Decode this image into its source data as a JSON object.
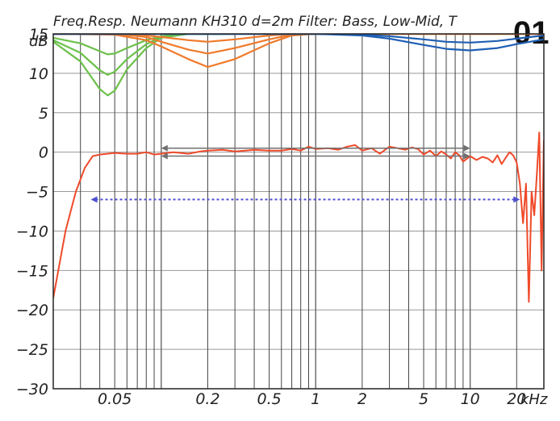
{
  "title": "Freq.Resp. Neumann KH310 d=2m Filter: Bass, Low-Mid, T",
  "badge": "01",
  "chart_data": {
    "type": "line",
    "title": "Freq.Resp. Neumann KH310 d=2m Filter: Bass, Low-Mid, T",
    "ylabel": "dB",
    "xlabel": "kHz",
    "xscale": "log",
    "xlim": [
      0.02,
      30
    ],
    "ylim": [
      -30,
      15
    ],
    "y_ticks": [
      15,
      10,
      5,
      0,
      -5,
      -10,
      -15,
      -20,
      -25,
      -30
    ],
    "y_tick_labels": [
      "15",
      "10",
      "5",
      "0",
      "−5",
      "−10",
      "−15",
      "−20",
      "−25",
      "−30"
    ],
    "x_ticks": [
      0.05,
      0.2,
      0.5,
      1,
      2,
      5,
      10,
      20
    ],
    "x_tick_labels": [
      "0.05",
      "0.2",
      "0.5",
      "1",
      "2",
      "5",
      "10",
      "20"
    ],
    "grid": true,
    "colors": {
      "bass_filter": "#6cc04a",
      "lowmid_filter": "#f07a2a",
      "treble_filter": "#1f5fb4",
      "response": "#ef4a2a",
      "range_marker": "#5050d0",
      "tolerance_arrows": "#707070"
    },
    "series": [
      {
        "group": "bass_filter",
        "x": [
          0.02,
          0.03,
          0.04,
          0.045,
          0.05,
          0.06,
          0.08,
          0.1,
          0.15,
          0.2,
          0.3
        ],
        "y": [
          14.5,
          13.8,
          12.8,
          12.4,
          12.5,
          13.2,
          14.2,
          14.7,
          15,
          15,
          15
        ]
      },
      {
        "group": "bass_filter",
        "x": [
          0.02,
          0.03,
          0.04,
          0.045,
          0.05,
          0.06,
          0.08,
          0.1,
          0.15,
          0.2,
          0.3
        ],
        "y": [
          14.2,
          12.6,
          10.4,
          9.8,
          10.2,
          11.8,
          13.7,
          14.6,
          15,
          15,
          15
        ]
      },
      {
        "group": "bass_filter",
        "x": [
          0.02,
          0.03,
          0.04,
          0.045,
          0.05,
          0.06,
          0.08,
          0.1,
          0.15,
          0.2,
          0.3
        ],
        "y": [
          14,
          11.5,
          8,
          7.2,
          7.8,
          10.5,
          13.2,
          14.5,
          15,
          15,
          15
        ]
      },
      {
        "group": "lowmid_filter",
        "x": [
          0.02,
          0.05,
          0.08,
          0.1,
          0.15,
          0.2,
          0.3,
          0.5,
          0.7,
          1,
          2,
          5,
          30
        ],
        "y": [
          15,
          15,
          14.8,
          14.6,
          14.2,
          14,
          14.3,
          14.8,
          15,
          15,
          15,
          15,
          15
        ]
      },
      {
        "group": "lowmid_filter",
        "x": [
          0.02,
          0.05,
          0.08,
          0.1,
          0.15,
          0.2,
          0.3,
          0.5,
          0.7,
          1,
          2,
          5,
          30
        ],
        "y": [
          15,
          15,
          14.6,
          14,
          13,
          12.5,
          13.2,
          14.3,
          14.9,
          15,
          15,
          15,
          15
        ]
      },
      {
        "group": "lowmid_filter",
        "x": [
          0.02,
          0.05,
          0.08,
          0.1,
          0.15,
          0.2,
          0.3,
          0.5,
          0.7,
          1,
          2,
          5,
          30
        ],
        "y": [
          15,
          14.9,
          14.2,
          13.4,
          11.8,
          10.8,
          11.8,
          13.8,
          14.8,
          15,
          15,
          15,
          15
        ]
      },
      {
        "group": "treble_filter",
        "x": [
          0.02,
          1,
          2,
          3,
          5,
          7,
          10,
          15,
          20,
          30
        ],
        "y": [
          15,
          15,
          15,
          15.1,
          15.3,
          15.6,
          16,
          16.5,
          16.9,
          17.5
        ]
      },
      {
        "group": "treble_filter",
        "x": [
          0.02,
          1,
          2,
          3,
          5,
          7,
          10,
          15,
          20,
          30
        ],
        "y": [
          15,
          15,
          14.9,
          14.7,
          14.3,
          14,
          13.9,
          14.1,
          14.4,
          14.8
        ]
      },
      {
        "group": "treble_filter",
        "x": [
          0.02,
          1,
          2,
          3,
          5,
          7,
          10,
          15,
          20,
          30
        ],
        "y": [
          15,
          15,
          14.8,
          14.4,
          13.6,
          13.1,
          12.9,
          13.2,
          13.7,
          14.3
        ]
      },
      {
        "group": "response",
        "x": [
          0.02,
          0.024,
          0.028,
          0.032,
          0.036,
          0.04,
          0.045,
          0.05,
          0.06,
          0.07,
          0.08,
          0.09,
          0.1,
          0.12,
          0.15,
          0.18,
          0.2,
          0.25,
          0.3,
          0.35,
          0.4,
          0.5,
          0.6,
          0.7,
          0.8,
          0.9,
          1,
          1.2,
          1.4,
          1.6,
          1.8,
          2,
          2.3,
          2.6,
          3,
          3.4,
          3.8,
          4.2,
          4.6,
          5,
          5.5,
          6,
          6.5,
          7,
          7.5,
          8,
          8.5,
          9,
          10,
          11,
          12,
          13,
          14,
          15,
          16,
          17,
          18,
          19,
          20,
          21,
          22,
          23,
          24,
          25,
          26,
          27,
          28,
          29,
          30
        ],
        "y": [
          -18.5,
          -10,
          -5,
          -2,
          -0.5,
          -0.3,
          -0.2,
          -0.1,
          -0.2,
          -0.2,
          0,
          -0.3,
          -0.2,
          0,
          -0.2,
          0.1,
          0.2,
          0.3,
          0.1,
          0.2,
          0.3,
          0.2,
          0.2,
          0.4,
          0.2,
          0.7,
          0.4,
          0.5,
          0.3,
          0.7,
          0.9,
          0.2,
          0.5,
          -0.2,
          0.7,
          0.5,
          0.3,
          0.6,
          0.4,
          -0.3,
          0.2,
          -0.5,
          0.1,
          -0.3,
          -0.8,
          0,
          -0.4,
          -1.2,
          -0.5,
          -1,
          -0.6,
          -0.8,
          -1.3,
          -0.4,
          -1.5,
          -0.7,
          0,
          -0.4,
          -1.3,
          -4,
          -9,
          -4,
          -19,
          -5,
          -8,
          -3,
          2.5,
          -15,
          1.5
        ]
      }
    ],
    "range_marker": {
      "x_from": 0.035,
      "x_to": 21,
      "y": -6
    },
    "tolerance_arrows": [
      {
        "x_from": 0.1,
        "x_to": 10,
        "y": 0.5
      },
      {
        "x_from": 0.1,
        "x_to": 10,
        "y": -0.5
      }
    ]
  }
}
